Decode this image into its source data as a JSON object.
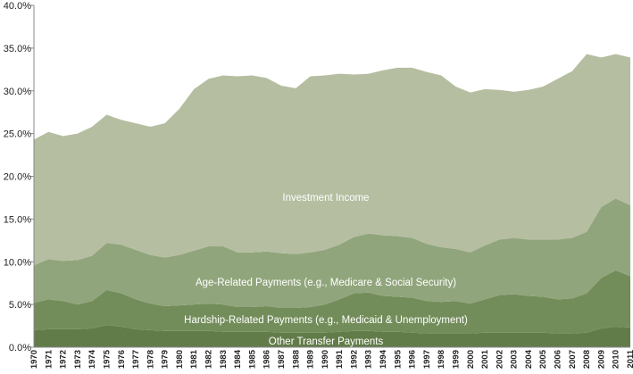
{
  "chart_data": {
    "type": "stacked_area",
    "categories": [
      "1970",
      "1971",
      "1972",
      "1973",
      "1974",
      "1975",
      "1976",
      "1977",
      "1978",
      "1979",
      "1980",
      "1981",
      "1982",
      "1983",
      "1984",
      "1985",
      "1986",
      "1987",
      "1988",
      "1989",
      "1990",
      "1991",
      "1992",
      "1993",
      "1994",
      "1995",
      "1996",
      "1997",
      "1998",
      "1999",
      "2000",
      "2001",
      "2002",
      "2003",
      "2004",
      "2005",
      "2006",
      "2007",
      "2008",
      "2009",
      "2010",
      "2011"
    ],
    "series": [
      {
        "name": "Other Transfer Payments",
        "color": "#627c49",
        "values": [
          2.0,
          2.1,
          2.1,
          2.1,
          2.2,
          2.6,
          2.4,
          2.1,
          2.0,
          1.9,
          1.9,
          1.9,
          1.9,
          1.8,
          1.8,
          1.8,
          1.8,
          1.7,
          1.7,
          1.7,
          1.7,
          1.8,
          1.9,
          1.9,
          1.8,
          1.8,
          1.7,
          1.6,
          1.6,
          1.6,
          1.6,
          1.7,
          1.7,
          1.7,
          1.7,
          1.7,
          1.6,
          1.6,
          1.7,
          2.2,
          2.4,
          2.3
        ]
      },
      {
        "name": "Hardship-Related Payments (e.g., Medicaid & Unemployment)",
        "color": "#738d5a",
        "values": [
          3.2,
          3.5,
          3.3,
          2.9,
          3.2,
          4.1,
          3.9,
          3.5,
          3.1,
          2.9,
          3.0,
          3.1,
          3.2,
          3.2,
          2.9,
          2.9,
          3.0,
          2.9,
          2.9,
          3.0,
          3.3,
          3.8,
          4.4,
          4.5,
          4.2,
          4.1,
          4.1,
          3.8,
          3.7,
          3.8,
          3.5,
          3.9,
          4.4,
          4.5,
          4.3,
          4.2,
          4.0,
          4.1,
          4.6,
          5.9,
          6.6,
          6.0
        ]
      },
      {
        "name": "Age-Related Payments (e.g., Medicare & Social Security)",
        "color": "#91a57c",
        "values": [
          4.4,
          4.7,
          4.7,
          5.2,
          5.3,
          5.5,
          5.7,
          5.8,
          5.7,
          5.7,
          5.9,
          6.3,
          6.7,
          6.8,
          6.4,
          6.4,
          6.4,
          6.4,
          6.3,
          6.4,
          6.4,
          6.4,
          6.6,
          6.9,
          7.1,
          7.1,
          7.0,
          6.7,
          6.4,
          6.1,
          6.0,
          6.3,
          6.5,
          6.6,
          6.6,
          6.7,
          7.0,
          7.1,
          7.2,
          8.3,
          8.4,
          8.3
        ]
      },
      {
        "name": "Investment Income",
        "color": "#b5bea1",
        "values": [
          14.7,
          14.9,
          14.6,
          14.8,
          15.1,
          15.0,
          14.6,
          14.8,
          15.0,
          15.7,
          17.1,
          18.9,
          19.6,
          20.0,
          20.6,
          20.7,
          20.3,
          19.6,
          19.4,
          20.6,
          20.4,
          20.0,
          19.0,
          18.7,
          19.3,
          19.7,
          19.9,
          20.1,
          20.1,
          19.0,
          18.7,
          18.3,
          17.5,
          17.1,
          17.5,
          17.9,
          18.8,
          19.5,
          20.8,
          17.5,
          16.9,
          17.3
        ]
      }
    ],
    "ylim": [
      0,
      40
    ],
    "yticks": [
      {
        "value": 0,
        "label": "0.0%"
      },
      {
        "value": 5,
        "label": "5.0%"
      },
      {
        "value": 10,
        "label": "10.0%"
      },
      {
        "value": 15,
        "label": "15.0%"
      },
      {
        "value": 20,
        "label": "20.0%"
      },
      {
        "value": 25,
        "label": "25.0%"
      },
      {
        "value": 30,
        "label": "30.0%"
      },
      {
        "value": 35,
        "label": "35.0%"
      },
      {
        "value": 40,
        "label": "40.0%"
      }
    ],
    "grid": false
  }
}
